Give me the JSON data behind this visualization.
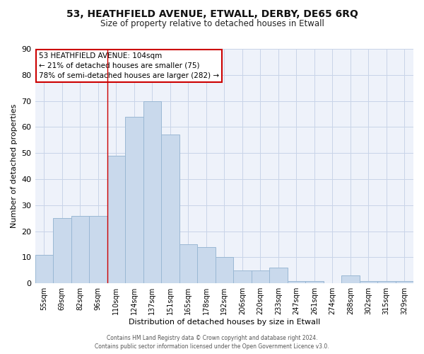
{
  "title1": "53, HEATHFIELD AVENUE, ETWALL, DERBY, DE65 6RQ",
  "title2": "Size of property relative to detached houses in Etwall",
  "xlabel": "Distribution of detached houses by size in Etwall",
  "ylabel": "Number of detached properties",
  "categories": [
    "55sqm",
    "69sqm",
    "82sqm",
    "96sqm",
    "110sqm",
    "124sqm",
    "137sqm",
    "151sqm",
    "165sqm",
    "178sqm",
    "192sqm",
    "206sqm",
    "220sqm",
    "233sqm",
    "247sqm",
    "261sqm",
    "274sqm",
    "288sqm",
    "302sqm",
    "315sqm",
    "329sqm"
  ],
  "values": [
    11,
    25,
    26,
    26,
    49,
    64,
    70,
    57,
    15,
    14,
    10,
    5,
    5,
    6,
    1,
    1,
    0,
    3,
    1,
    1,
    1
  ],
  "bar_color": "#c9d9ec",
  "bar_edge_color": "#9ab8d4",
  "vline_index": 4,
  "vline_color": "#cc0000",
  "annotation_line1": "53 HEATHFIELD AVENUE: 104sqm",
  "annotation_line2": "← 21% of detached houses are smaller (75)",
  "annotation_line3": "78% of semi-detached houses are larger (282) →",
  "annotation_box_color": "#cc0000",
  "ylim": [
    0,
    90
  ],
  "yticks": [
    0,
    10,
    20,
    30,
    40,
    50,
    60,
    70,
    80,
    90
  ],
  "grid_color": "#c8d4e8",
  "background_color": "#eef2fa",
  "title1_fontsize": 10,
  "title2_fontsize": 8.5,
  "xlabel_fontsize": 8,
  "ylabel_fontsize": 8,
  "footer1": "Contains HM Land Registry data © Crown copyright and database right 2024.",
  "footer2": "Contains public sector information licensed under the Open Government Licence v3.0."
}
